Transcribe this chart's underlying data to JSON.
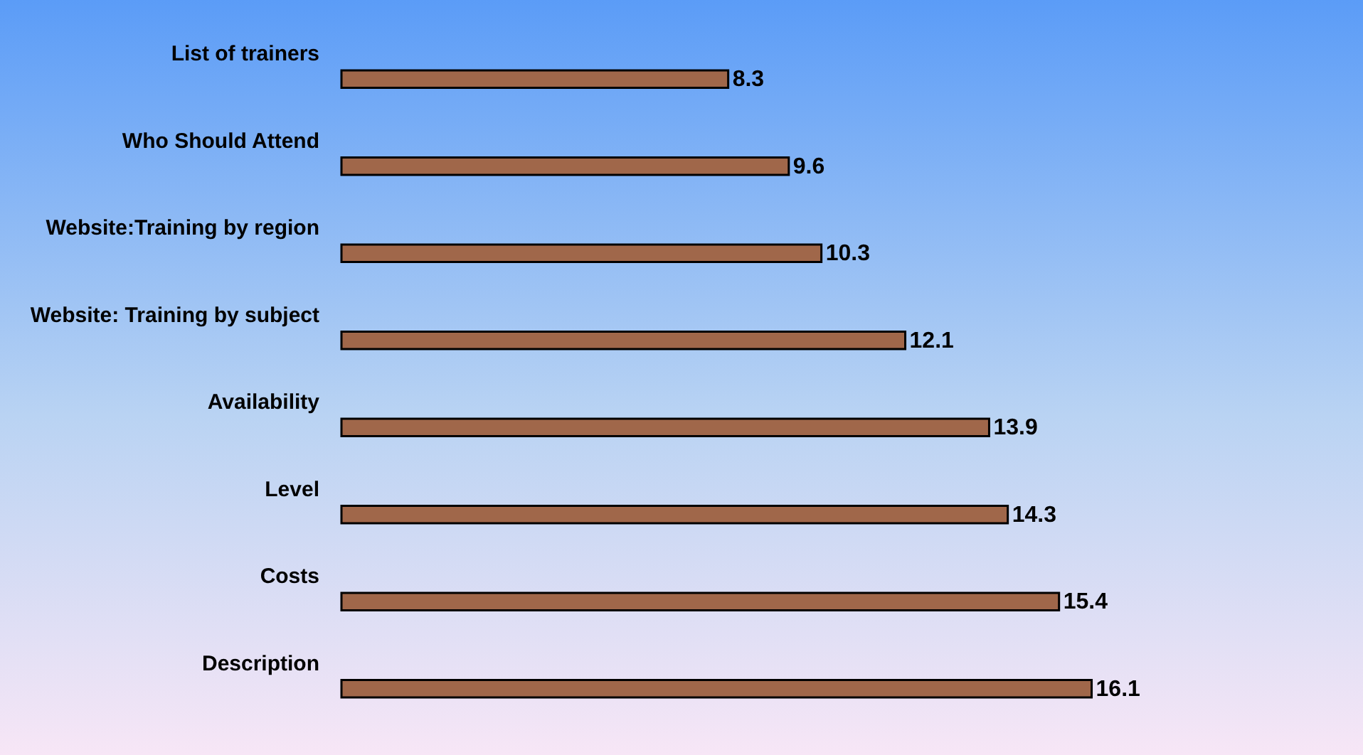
{
  "chart_data": {
    "type": "bar",
    "orientation": "horizontal",
    "categories": [
      "List of trainers",
      "Who Should Attend",
      "Website:Training by region",
      "Website: Training by subject",
      "Availability",
      "Level",
      "Costs",
      "Description"
    ],
    "values": [
      8.3,
      9.6,
      10.3,
      12.1,
      13.9,
      14.3,
      15.4,
      16.1
    ],
    "color": "#a0674a",
    "data_labels": true
  }
}
